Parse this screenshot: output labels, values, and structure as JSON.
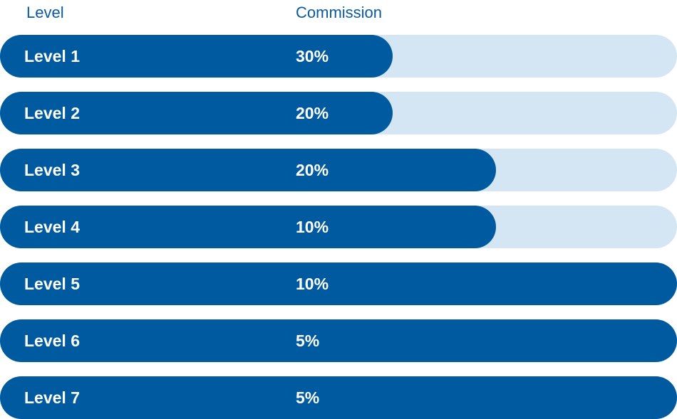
{
  "headers": {
    "level": "Level",
    "commission": "Commission"
  },
  "colors": {
    "header_text": "#0b5aa0",
    "bar_fill": "#005aa0",
    "bar_track": "#d4e5f3",
    "bar_text": "#ffffff"
  },
  "chart_data": {
    "type": "bar",
    "title": "",
    "xlabel": "Commission",
    "ylabel": "Level",
    "categories": [
      "Level 1",
      "Level 2",
      "Level 3",
      "Level 4",
      "Level 5",
      "Level 6",
      "Level 7"
    ],
    "value_labels": [
      "30%",
      "20%",
      "20%",
      "10%",
      "10%",
      "5%",
      "5%"
    ],
    "values": [
      30,
      20,
      20,
      10,
      10,
      5,
      5
    ],
    "bar_fill_fraction": [
      0.58,
      0.58,
      0.733,
      0.733,
      1.0,
      1.0,
      1.0
    ],
    "grid": false
  }
}
